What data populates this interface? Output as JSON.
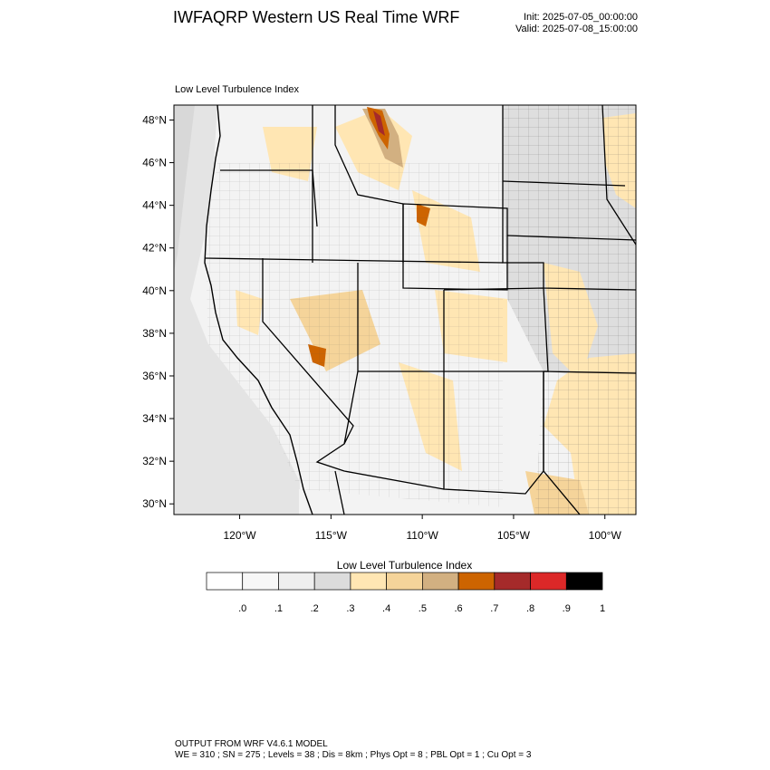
{
  "header": {
    "title": "IWFAQRP Western US Real Time WRF",
    "init": "Init: 2025-07-05_00:00:00",
    "valid": "Valid: 2025-07-08_15:00:00"
  },
  "map": {
    "field_label": "Low Level Turbulence Index",
    "lat_labels": [
      "48°N",
      "46°N",
      "44°N",
      "42°N",
      "40°N",
      "38°N",
      "36°N",
      "34°N",
      "32°N",
      "30°N"
    ],
    "lon_labels": [
      "120°W",
      "115°W",
      "110°W",
      "105°W",
      "100°W"
    ],
    "lat_values": [
      48,
      46,
      44,
      42,
      40,
      38,
      36,
      34,
      32,
      30
    ],
    "lon_values": [
      -120,
      -115,
      -110,
      -105,
      -100
    ],
    "extent": {
      "lon_min": -123.6,
      "lon_max": -98.3,
      "lat_min": 29.5,
      "lat_max": 48.7
    }
  },
  "colorbar": {
    "title": "Low Level Turbulence Index",
    "labels": [
      ".0",
      ".1",
      ".2",
      ".3",
      ".4",
      ".5",
      ".6",
      ".7",
      ".8",
      ".9",
      "1"
    ],
    "colors": [
      "#ffffff",
      "#f7f7f7",
      "#efefef",
      "#dcdcdc",
      "#ffe6b3",
      "#f5d49a",
      "#d2b081",
      "#cd6400",
      "#a52a2a",
      "#dc2828",
      "#000000"
    ]
  },
  "footer": {
    "line1": "OUTPUT FROM WRF V4.6.1 MODEL",
    "line2": "WE = 310 ; SN = 275 ; Levels = 38 ; Dis = 8km ; Phys Opt = 8 ; PBL Opt = 1 ; Cu Opt = 3"
  }
}
